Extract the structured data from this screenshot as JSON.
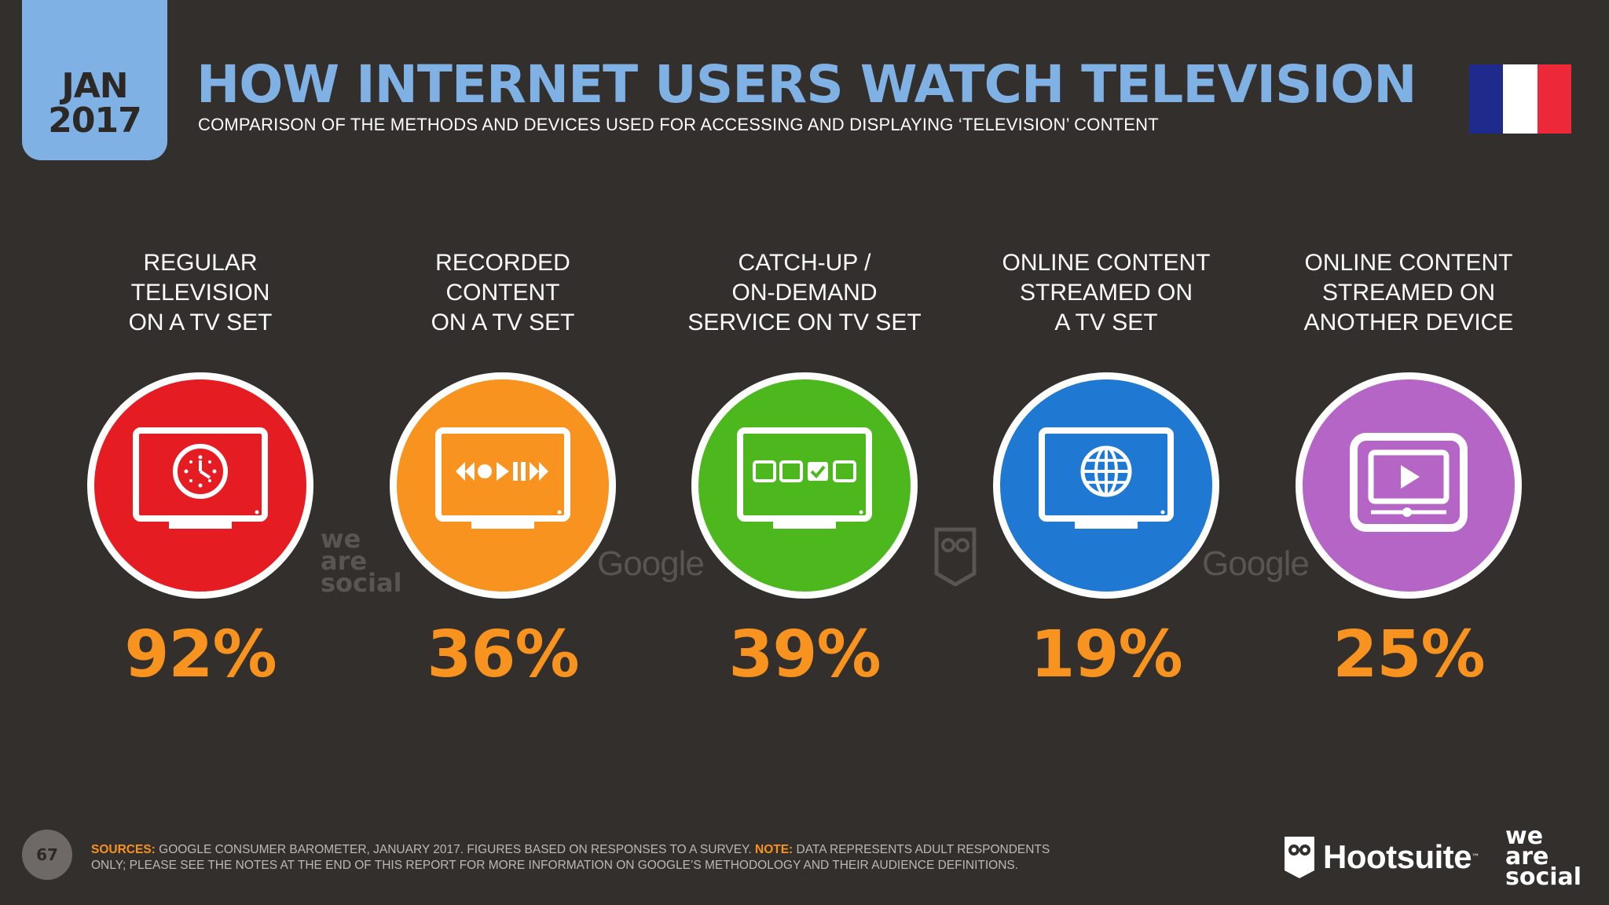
{
  "header": {
    "date_month": "JAN",
    "date_year": "2017",
    "title": "HOW INTERNET USERS WATCH TELEVISION",
    "subtitle": "COMPARISON OF THE METHODS AND DEVICES USED FOR ACCESSING AND DISPLAYING ‘TELEVISION’ CONTENT",
    "flag_colors": [
      "#1e2a8c",
      "#ffffff",
      "#ed2939"
    ]
  },
  "items": [
    {
      "label_1": "REGULAR",
      "label_2": "TELEVISION",
      "label_3": "ON A TV SET",
      "value": "92%",
      "color": "#e61c23",
      "icon": "tv-clock-icon"
    },
    {
      "label_1": "RECORDED",
      "label_2": "CONTENT",
      "label_3": "ON A TV SET",
      "value": "36%",
      "color": "#f7931e",
      "icon": "tv-media-controls-icon"
    },
    {
      "label_1": "CATCH-UP /",
      "label_2": "ON-DEMAND",
      "label_3": "SERVICE ON TV SET",
      "value": "39%",
      "color": "#4db81e",
      "icon": "tv-checkbox-selection-icon"
    },
    {
      "label_1": "ONLINE CONTENT",
      "label_2": "STREAMED ON",
      "label_3": "A TV SET",
      "value": "19%",
      "color": "#1f78d1",
      "icon": "tv-globe-icon"
    },
    {
      "label_1": "ONLINE CONTENT",
      "label_2": "STREAMED ON",
      "label_3": "ANOTHER DEVICE",
      "value": "25%",
      "color": "#b565c6",
      "icon": "device-video-play-icon"
    }
  ],
  "watermarks": {
    "google": "Google",
    "we": "we",
    "are": "are",
    "social": "social"
  },
  "footer": {
    "page_number": "67",
    "sources_label": "SOURCES:",
    "sources_text": " GOOGLE CONSUMER BAROMETER, JANUARY 2017. FIGURES BASED ON RESPONSES TO A SURVEY. ",
    "note_label": "NOTE:",
    "note_text": " DATA REPRESENTS ADULT RESPONDENTS ONLY; PLEASE SEE THE NOTES AT THE END OF THIS REPORT FOR MORE INFORMATION ON GOOGLE’S METHODOLOGY AND THEIR AUDIENCE DEFINITIONS.",
    "hootsuite": "Hootsuite",
    "hootsuite_tm": "™",
    "we": "we",
    "are": "are",
    "social": "social"
  }
}
